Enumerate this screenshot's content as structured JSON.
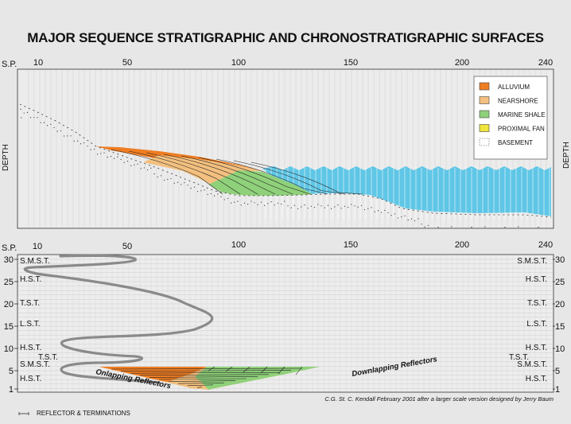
{
  "title": "MAJOR SEQUENCE STRATIGRAPHIC AND CHRONOSTRATIGRAPHIC SURFACES",
  "sp_label": "S.P.",
  "sp_ticks": [
    "10",
    "50",
    "100",
    "150",
    "200",
    "240"
  ],
  "depth_label": "DEPTH",
  "legend": [
    {
      "label": "ALLUVIUM",
      "color": "#ef7d22"
    },
    {
      "label": "NEARSHORE",
      "color": "#f3c07f"
    },
    {
      "label": "MARINE SHALE",
      "color": "#8fd17a"
    },
    {
      "label": "PROXIMAL FAN",
      "color": "#f0e53a"
    },
    {
      "label": "BASEMENT",
      "color": "#ffffff"
    }
  ],
  "chrono_axis_ticks": [
    "30",
    "25",
    "20",
    "15",
    "10",
    "5",
    "1"
  ],
  "left_tracts": [
    "S.M.S.T.",
    "H.S.T.",
    "T.S.T.",
    "L.S.T.",
    "H.S.T.",
    "T.S.T.",
    "S.M.S.T.",
    "H.S.T."
  ],
  "right_tracts": [
    "S.M.S.T.",
    "H.S.T.",
    "T.S.T.",
    "L.S.T.",
    "H.S.T.",
    "T.S.T.",
    "S.M.S.T.",
    "H.S.T."
  ],
  "annotations": {
    "onlapping": "Onlapping Reflectors",
    "downlapping": "Downlapping Reflectors"
  },
  "credit": "C.G. St. C. Kendall February 2001 after a larger scale version designed by Jerry Baum",
  "footer": "REFLECTOR & TERMINATIONS",
  "colors": {
    "water": "#5fc6e6",
    "alluvium": "#ef7d22",
    "nearshore": "#f3c07f",
    "marine_shale": "#8fd17a",
    "proximal_fan": "#f0e53a",
    "curve": "#8a8a8a"
  }
}
